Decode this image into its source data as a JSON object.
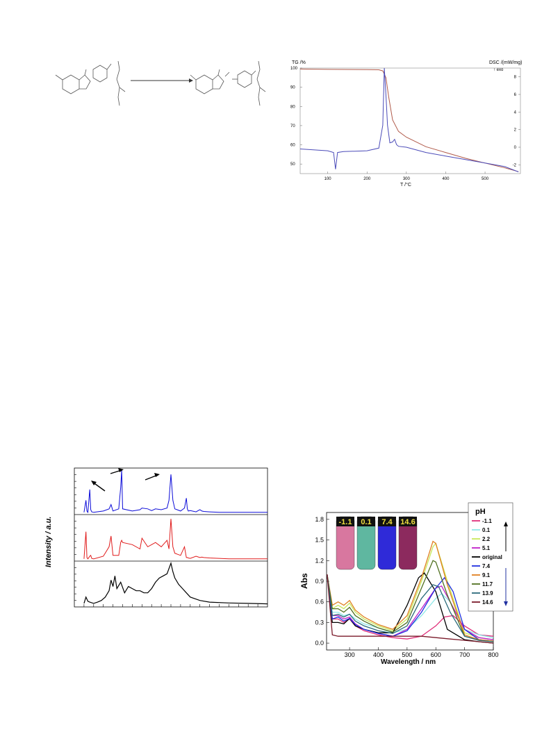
{
  "scheme": {
    "arrow": "→"
  },
  "tgdsc": {
    "tg_axis_label": "TG /%",
    "dsc_axis_label": "DSC /(mW/mg)",
    "exo_label": "↑ exo",
    "x_axis_label": "T /°C",
    "tg_ticks": [
      "100",
      "90",
      "80",
      "70",
      "60",
      "50"
    ],
    "dsc_ticks": [
      "8",
      "6",
      "4",
      "2",
      "0",
      "-2"
    ],
    "x_ticks": [
      "100",
      "200",
      "300",
      "400",
      "500"
    ],
    "colors": {
      "tg": "#b05a4a",
      "dsc": "#4a4ab8"
    }
  },
  "xrd": {
    "ylabel": "Intensity / a.u.",
    "colors": {
      "top": "#0a0ad8",
      "middle": "#e01a1a",
      "bottom": "#000000"
    }
  },
  "uvvis": {
    "legend_title": "pH",
    "xlabel": "Wavelength / nm",
    "ylabel": "Abs",
    "x_ticks": [
      "300",
      "400",
      "500",
      "600",
      "700",
      "800"
    ],
    "y_ticks": [
      "0.0",
      "0.3",
      "0.6",
      "0.9",
      "1.2",
      "1.5",
      "1.8"
    ],
    "vials": [
      {
        "label": "-1.1",
        "color": "#d8779f"
      },
      {
        "label": "0.1",
        "color": "#5fb7a0"
      },
      {
        "label": "7.4",
        "color": "#2f2ad8"
      },
      {
        "label": "14.6",
        "color": "#8c2a5e"
      }
    ],
    "legend": [
      {
        "label": "-1.1",
        "color": "#e0307a"
      },
      {
        "label": "0.1",
        "color": "#8fe8e8"
      },
      {
        "label": "2.2",
        "color": "#c8e85a"
      },
      {
        "label": "5.1",
        "color": "#c020c8"
      },
      {
        "label": "original",
        "color": "#000000"
      },
      {
        "label": "7.4",
        "color": "#2030e0"
      },
      {
        "label": "9.1",
        "color": "#e08020"
      },
      {
        "label": "11.7",
        "color": "#507020"
      },
      {
        "label": "13.9",
        "color": "#2a6a7a"
      },
      {
        "label": "14.6",
        "color": "#7a1a2a"
      }
    ]
  },
  "chart_data": [
    {
      "type": "line",
      "xlabel": "T /°C",
      "ylabel": "TG /%",
      "xlim": [
        30,
        590
      ],
      "ylim": [
        45,
        100
      ],
      "series": [
        {
          "x": [
            30,
            100,
            200,
            230,
            240,
            248,
            255,
            265,
            280,
            300,
            350,
            400,
            450,
            500,
            550,
            585
          ],
          "values": [
            99.5,
            99.3,
            99.2,
            99.1,
            98.5,
            95,
            85,
            73,
            67,
            64,
            59,
            56,
            53,
            50.5,
            48,
            46
          ]
        }
      ],
      "y2label": "DSC /(mW/mg)",
      "y2lim": [
        -3,
        9
      ],
      "series2": [
        {
          "x": [
            30,
            100,
            115,
            120,
            125,
            140,
            200,
            230,
            240,
            244,
            248,
            252,
            258,
            265,
            270,
            275,
            280,
            300,
            350,
            400,
            450,
            500,
            550,
            585
          ],
          "values": [
            -0.2,
            -0.4,
            -0.6,
            -2.5,
            -0.6,
            -0.5,
            -0.4,
            -0.1,
            2.5,
            9.0,
            6.0,
            2.5,
            0.5,
            0.6,
            0.9,
            0.3,
            0.1,
            0.0,
            -0.6,
            -1.0,
            -1.4,
            -1.8,
            -2.2,
            -2.8
          ]
        }
      ]
    },
    {
      "type": "line",
      "xlim": [
        0,
        100
      ],
      "series": [
        {
          "x": [
            5,
            6,
            6.5,
            7,
            8,
            8.5,
            9,
            10,
            15,
            18,
            19,
            20,
            23,
            24,
            24.5,
            25,
            30,
            34,
            35,
            38,
            40,
            42,
            45,
            48,
            49,
            50,
            51,
            52,
            55,
            57,
            58,
            58.5,
            59,
            60,
            63,
            65,
            66,
            67,
            70,
            75,
            80,
            90,
            100
          ],
          "values": [
            0.02,
            0.3,
            0.05,
            0.02,
            0.55,
            0.08,
            0.03,
            0.02,
            0.05,
            0.1,
            0.2,
            0.05,
            0.1,
            0.6,
            1.0,
            0.1,
            0.05,
            0.08,
            0.12,
            0.1,
            0.06,
            0.1,
            0.08,
            0.12,
            0.3,
            0.9,
            0.3,
            0.1,
            0.05,
            0.12,
            0.35,
            0.1,
            0.05,
            0.06,
            0.03,
            0.08,
            0.05,
            0.04,
            0.03,
            0.02,
            0.02,
            0.02,
            0.02
          ]
        },
        {
          "x": [
            5,
            6,
            6.5,
            7,
            8,
            8.5,
            9,
            10,
            15,
            18,
            19,
            20,
            23,
            24,
            24.5,
            25,
            30,
            34,
            35,
            38,
            40,
            42,
            45,
            48,
            49,
            50,
            51,
            52,
            55,
            57,
            58,
            58.5,
            59,
            60,
            63,
            65,
            66,
            67,
            70,
            75,
            80,
            90,
            100
          ],
          "values": [
            0.02,
            0.65,
            0.05,
            0.02,
            0.08,
            0.1,
            0.03,
            0.02,
            0.08,
            0.3,
            0.55,
            0.1,
            0.1,
            0.4,
            0.45,
            0.4,
            0.35,
            0.25,
            0.5,
            0.3,
            0.35,
            0.4,
            0.3,
            0.45,
            0.25,
            0.95,
            0.3,
            0.15,
            0.1,
            0.3,
            0.05,
            0.05,
            0.04,
            0.03,
            0.08,
            0.05,
            0.06,
            0.05,
            0.04,
            0.03,
            0.02,
            0.02,
            0.02
          ]
        },
        {
          "x": [
            5,
            6,
            7,
            8,
            10,
            12,
            14,
            16,
            18,
            19,
            20,
            21,
            22,
            24,
            26,
            28,
            30,
            32,
            34,
            36,
            38,
            40,
            42,
            44,
            46,
            48,
            50,
            51,
            52,
            54,
            56,
            58,
            60,
            65,
            70,
            80,
            90,
            100
          ],
          "values": [
            0.05,
            0.2,
            0.1,
            0.08,
            0.05,
            0.08,
            0.12,
            0.2,
            0.35,
            0.6,
            0.45,
            0.7,
            0.4,
            0.55,
            0.3,
            0.45,
            0.4,
            0.35,
            0.35,
            0.3,
            0.3,
            0.4,
            0.55,
            0.65,
            0.7,
            0.75,
            1.0,
            0.8,
            0.65,
            0.5,
            0.4,
            0.3,
            0.2,
            0.12,
            0.08,
            0.06,
            0.05,
            0.04
          ]
        }
      ]
    },
    {
      "type": "line",
      "xlabel": "Wavelength / nm",
      "ylabel": "Abs",
      "xlim": [
        220,
        800
      ],
      "ylim": [
        -0.1,
        1.9
      ],
      "series": [
        {
          "name": "-1.1",
          "x": [
            222,
            240,
            260,
            280,
            300,
            320,
            350,
            400,
            450,
            500,
            550,
            600,
            630,
            660,
            700,
            750,
            800
          ],
          "values": [
            1.0,
            0.35,
            0.35,
            0.3,
            0.35,
            0.25,
            0.18,
            0.12,
            0.08,
            0.06,
            0.1,
            0.25,
            0.38,
            0.4,
            0.25,
            0.12,
            0.1
          ]
        },
        {
          "name": "0.1",
          "x": [
            222,
            240,
            260,
            280,
            300,
            320,
            350,
            400,
            450,
            500,
            550,
            600,
            620,
            650,
            700,
            750,
            800
          ],
          "values": [
            1.0,
            0.45,
            0.45,
            0.4,
            0.42,
            0.35,
            0.28,
            0.22,
            0.15,
            0.2,
            0.4,
            0.65,
            0.72,
            0.6,
            0.2,
            0.12,
            0.08
          ]
        },
        {
          "name": "2.2",
          "x": [
            222,
            240,
            260,
            280,
            300,
            320,
            350,
            400,
            450,
            500,
            550,
            590,
            600,
            640,
            700,
            750,
            800
          ],
          "values": [
            1.0,
            0.5,
            0.55,
            0.5,
            0.58,
            0.45,
            0.35,
            0.25,
            0.18,
            0.35,
            0.9,
            1.4,
            1.45,
            0.9,
            0.15,
            0.08,
            0.05
          ]
        },
        {
          "name": "5.1",
          "x": [
            222,
            240,
            260,
            280,
            300,
            320,
            350,
            400,
            450,
            500,
            550,
            600,
            620,
            650,
            700,
            750,
            800
          ],
          "values": [
            1.0,
            0.4,
            0.4,
            0.35,
            0.38,
            0.28,
            0.2,
            0.14,
            0.1,
            0.2,
            0.5,
            0.8,
            0.83,
            0.6,
            0.2,
            0.08,
            0.05
          ]
        },
        {
          "name": "original",
          "x": [
            222,
            240,
            260,
            280,
            300,
            320,
            350,
            400,
            450,
            500,
            540,
            560,
            600,
            640,
            700,
            750,
            800
          ],
          "values": [
            1.0,
            0.3,
            0.3,
            0.28,
            0.36,
            0.25,
            0.2,
            0.15,
            0.15,
            0.55,
            0.95,
            1.02,
            0.75,
            0.2,
            0.05,
            0.02,
            0.0
          ]
        },
        {
          "name": "7.4",
          "x": [
            222,
            240,
            260,
            280,
            300,
            320,
            350,
            400,
            450,
            500,
            550,
            600,
            630,
            660,
            700,
            750,
            800
          ],
          "values": [
            1.0,
            0.35,
            0.38,
            0.32,
            0.36,
            0.27,
            0.2,
            0.14,
            0.1,
            0.18,
            0.45,
            0.8,
            0.95,
            0.75,
            0.2,
            0.05,
            0.03
          ]
        },
        {
          "name": "9.1",
          "x": [
            222,
            240,
            260,
            280,
            300,
            320,
            350,
            400,
            450,
            500,
            550,
            590,
            600,
            640,
            700,
            750,
            800
          ],
          "values": [
            1.0,
            0.55,
            0.6,
            0.55,
            0.62,
            0.48,
            0.38,
            0.27,
            0.2,
            0.4,
            0.95,
            1.48,
            1.45,
            0.85,
            0.12,
            0.05,
            0.03
          ]
        },
        {
          "name": "11.7",
          "x": [
            222,
            240,
            260,
            280,
            300,
            320,
            350,
            400,
            450,
            500,
            550,
            590,
            600,
            640,
            700,
            750,
            800
          ],
          "values": [
            1.0,
            0.5,
            0.5,
            0.45,
            0.52,
            0.4,
            0.32,
            0.22,
            0.16,
            0.3,
            0.8,
            1.2,
            1.18,
            0.7,
            0.1,
            0.04,
            0.02
          ]
        },
        {
          "name": "13.9",
          "x": [
            222,
            240,
            260,
            280,
            300,
            320,
            350,
            400,
            450,
            500,
            550,
            590,
            610,
            650,
            700,
            750,
            800
          ],
          "values": [
            1.0,
            0.4,
            0.42,
            0.38,
            0.42,
            0.32,
            0.25,
            0.18,
            0.14,
            0.25,
            0.65,
            0.85,
            0.82,
            0.45,
            0.1,
            0.04,
            0.02
          ]
        },
        {
          "name": "14.6",
          "x": [
            222,
            240,
            260,
            280,
            300,
            350,
            400,
            450,
            500,
            550,
            600,
            650,
            700,
            750,
            800
          ],
          "values": [
            1.0,
            0.12,
            0.1,
            0.1,
            0.1,
            0.1,
            0.1,
            0.1,
            0.1,
            0.1,
            0.08,
            0.06,
            0.04,
            0.02,
            0.0
          ]
        }
      ]
    }
  ]
}
